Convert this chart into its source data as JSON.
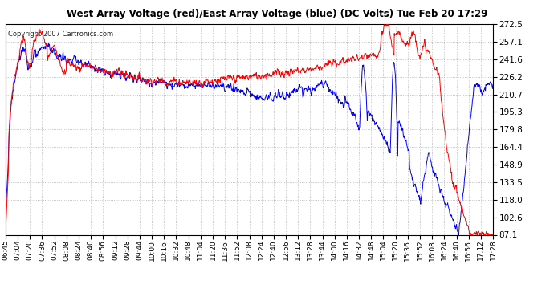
{
  "title": "West Array Voltage (red)/East Array Voltage (blue) (DC Volts) Tue Feb 20 17:29",
  "copyright": "Copyright 2007 Cartronics.com",
  "background_color": "#ffffff",
  "plot_bg_color": "#ffffff",
  "grid_color": "#b0b0b0",
  "yticks": [
    87.1,
    102.6,
    118.0,
    133.5,
    148.9,
    164.4,
    179.8,
    195.3,
    210.7,
    226.2,
    241.6,
    257.1,
    272.5
  ],
  "ymin": 87.1,
  "ymax": 272.5,
  "red_color": "#ff0000",
  "blue_color": "#0000ff",
  "xtick_labels": [
    "06:45",
    "07:04",
    "07:20",
    "07:36",
    "07:52",
    "08:08",
    "08:24",
    "08:40",
    "08:56",
    "09:12",
    "09:28",
    "09:44",
    "10:00",
    "10:16",
    "10:32",
    "10:48",
    "11:04",
    "11:20",
    "11:36",
    "11:52",
    "12:08",
    "12:24",
    "12:40",
    "12:56",
    "13:12",
    "13:28",
    "13:44",
    "14:00",
    "14:16",
    "14:32",
    "14:48",
    "15:04",
    "15:20",
    "15:36",
    "15:52",
    "16:08",
    "16:24",
    "16:40",
    "16:56",
    "17:12",
    "17:28"
  ]
}
